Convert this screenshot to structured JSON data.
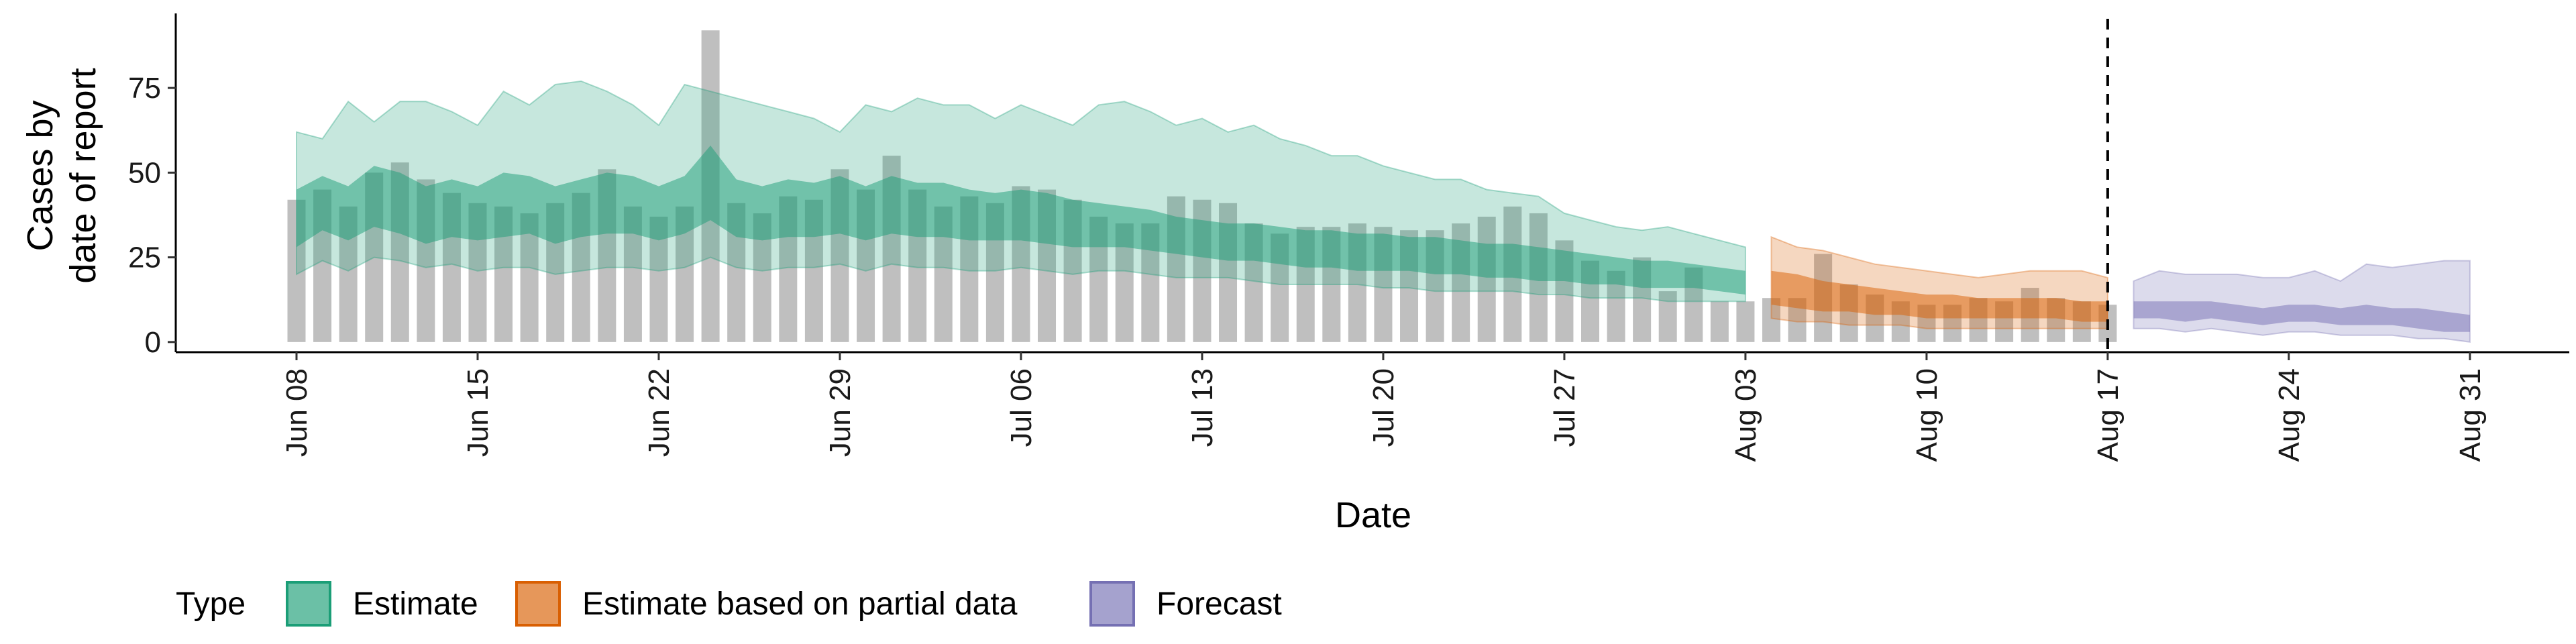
{
  "chart_data": {
    "type": "bar",
    "xlabel": "Date",
    "ylabel_lines": [
      "Cases by",
      "date of report"
    ],
    "ylim": [
      -3,
      97
    ],
    "y_ticks": [
      0,
      25,
      50,
      75
    ],
    "x_start": "Jun 08",
    "x_ticks": [
      {
        "day": 0,
        "label": "Jun 08"
      },
      {
        "day": 7,
        "label": "Jun 15"
      },
      {
        "day": 14,
        "label": "Jun 22"
      },
      {
        "day": 21,
        "label": "Jun 29"
      },
      {
        "day": 28,
        "label": "Jul 06"
      },
      {
        "day": 35,
        "label": "Jul 13"
      },
      {
        "day": 42,
        "label": "Jul 20"
      },
      {
        "day": 49,
        "label": "Jul 27"
      },
      {
        "day": 56,
        "label": "Aug 03"
      },
      {
        "day": 63,
        "label": "Aug 10"
      },
      {
        "day": 70,
        "label": "Aug 17"
      },
      {
        "day": 77,
        "label": "Aug 24"
      },
      {
        "day": 84,
        "label": "Aug 31"
      }
    ],
    "vline_day": 70,
    "bars": [
      42,
      45,
      40,
      50,
      53,
      48,
      44,
      41,
      40,
      38,
      41,
      44,
      51,
      40,
      37,
      40,
      92,
      41,
      38,
      43,
      42,
      51,
      45,
      55,
      45,
      40,
      43,
      41,
      46,
      45,
      42,
      37,
      35,
      35,
      43,
      42,
      41,
      35,
      32,
      34,
      34,
      35,
      34,
      33,
      33,
      35,
      37,
      40,
      38,
      30,
      24,
      21,
      25,
      15,
      22,
      12,
      12,
      13,
      13,
      26,
      17,
      14,
      12,
      11,
      11,
      13,
      12,
      16,
      13,
      12,
      11
    ],
    "bands": {
      "estimate": {
        "name": "Estimate",
        "color": "#1B9E77",
        "start_day": 0,
        "lower90": [
          20,
          24,
          21,
          25,
          24,
          22,
          23,
          21,
          22,
          22,
          20,
          21,
          22,
          22,
          21,
          22,
          25,
          22,
          21,
          22,
          22,
          23,
          21,
          23,
          22,
          22,
          21,
          21,
          22,
          21,
          20,
          21,
          21,
          20,
          19,
          19,
          19,
          18,
          17,
          17,
          17,
          17,
          16,
          16,
          15,
          15,
          15,
          15,
          14,
          14,
          13,
          13,
          13,
          12,
          12,
          12,
          12
        ],
        "lower50": [
          28,
          33,
          30,
          34,
          32,
          29,
          31,
          30,
          31,
          32,
          29,
          31,
          32,
          32,
          30,
          32,
          36,
          31,
          30,
          31,
          31,
          32,
          30,
          32,
          31,
          31,
          30,
          30,
          30,
          29,
          28,
          28,
          28,
          27,
          26,
          25,
          24,
          24,
          23,
          22,
          22,
          21,
          21,
          21,
          20,
          20,
          19,
          19,
          18,
          18,
          17,
          17,
          16,
          16,
          16,
          15,
          14
        ],
        "upper50": [
          45,
          49,
          46,
          52,
          50,
          46,
          48,
          46,
          50,
          49,
          46,
          48,
          50,
          49,
          46,
          49,
          58,
          48,
          46,
          48,
          47,
          49,
          46,
          49,
          47,
          47,
          45,
          44,
          45,
          44,
          42,
          41,
          40,
          39,
          37,
          36,
          35,
          35,
          34,
          33,
          33,
          32,
          32,
          31,
          31,
          30,
          29,
          29,
          28,
          27,
          26,
          25,
          24,
          24,
          23,
          22,
          21
        ],
        "upper90": [
          62,
          60,
          71,
          65,
          71,
          71,
          68,
          64,
          74,
          70,
          76,
          77,
          74,
          70,
          64,
          76,
          74,
          72,
          70,
          68,
          66,
          62,
          70,
          68,
          72,
          70,
          70,
          66,
          70,
          67,
          64,
          70,
          71,
          68,
          64,
          66,
          62,
          64,
          60,
          58,
          55,
          55,
          52,
          50,
          48,
          48,
          45,
          44,
          43,
          38,
          36,
          34,
          33,
          34,
          32,
          30,
          28
        ]
      },
      "partial": {
        "name": "Estimate based on partial data",
        "color": "#D95F02",
        "start_day": 57,
        "lower90": [
          7,
          6,
          6,
          5,
          5,
          5,
          4,
          4,
          4,
          4,
          4,
          4,
          4,
          4
        ],
        "lower50": [
          11,
          10,
          9,
          9,
          8,
          8,
          7,
          7,
          7,
          7,
          7,
          7,
          6,
          6
        ],
        "upper50": [
          21,
          20,
          18,
          17,
          16,
          15,
          14,
          14,
          13,
          13,
          13,
          13,
          12,
          12
        ],
        "upper90": [
          31,
          28,
          27,
          25,
          23,
          22,
          21,
          20,
          19,
          20,
          21,
          21,
          21,
          19
        ]
      },
      "forecast": {
        "name": "Forecast",
        "color": "#7570B3",
        "start_day": 71,
        "lower90": [
          4,
          4,
          3,
          4,
          3,
          2,
          3,
          3,
          2,
          2,
          2,
          1,
          1,
          0
        ],
        "lower50": [
          7,
          7,
          6,
          7,
          6,
          5,
          6,
          6,
          5,
          5,
          5,
          4,
          3,
          3
        ],
        "upper50": [
          12,
          12,
          12,
          12,
          11,
          10,
          11,
          11,
          10,
          11,
          10,
          10,
          9,
          8
        ],
        "upper90": [
          18,
          21,
          20,
          20,
          20,
          19,
          19,
          21,
          18,
          23,
          22,
          23,
          24,
          24
        ]
      }
    },
    "legend_title": "Type",
    "legend_position": "bottom",
    "legend": [
      {
        "label": "Estimate",
        "color": "#1B9E77"
      },
      {
        "label": "Estimate based on partial data",
        "color": "#D95F02"
      },
      {
        "label": "Forecast",
        "color": "#7570B3"
      }
    ]
  }
}
